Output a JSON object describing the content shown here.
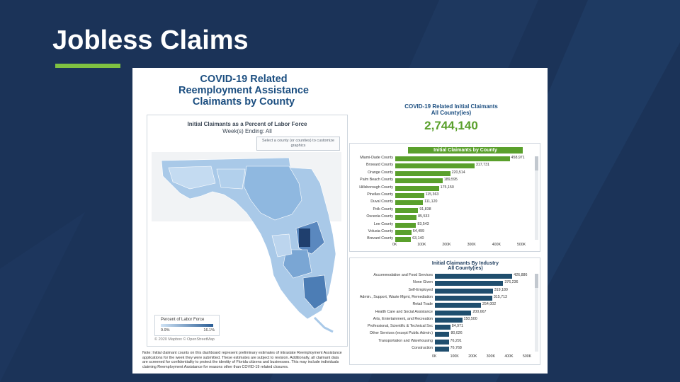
{
  "slide": {
    "title": "Jobless Claims"
  },
  "colors": {
    "background": "#1b3358",
    "accent": "#7fc241",
    "county_bar": "#5aa02c",
    "industry_bar": "#1f4e6e"
  },
  "dashboard": {
    "title_lines": [
      "COVID-19 Related",
      "Reemployment Assistance",
      "Claimants by County"
    ],
    "map": {
      "title": "Initial Claimants as a Percent of Labor Force",
      "subtitle": "Week(s) Ending: All",
      "hint": "Select a county (or counties) to customize graphics",
      "legend_label": "Percent of Labor Force",
      "legend_min": "9.9%",
      "legend_max": "16.1%",
      "credit": "© 2020 Mapbox © OpenStreetMap"
    },
    "total": {
      "label_lines": [
        "COVID-19 Related Initial Claimants",
        "All County(ies)"
      ],
      "value": "2,744,140"
    },
    "note": "Note: Initial claimant counts on this dashboard represent preliminary estimates of intrastate Reemployment Assistance applications for the week they were submitted. These estimates are subject to revision. Additionally, all claimant data are screened for confidentiality to protect the identity of Florida citizens and businesses. This may include individuals claiming Reemployment Assistance for reasons other than COVID-19 related closures."
  },
  "chart_data": [
    {
      "type": "bar",
      "orientation": "horizontal",
      "title": "Initial Claimants by County",
      "categories": [
        "Miami-Dade County",
        "Broward County",
        "Orange County",
        "Palm Beach County",
        "Hillsborough County",
        "Pinellas County",
        "Duval County",
        "Polk County",
        "Osceola County",
        "Lee County",
        "Volusia County",
        "Brevard County"
      ],
      "values": [
        458971,
        317731,
        220514,
        189595,
        175150,
        115363,
        111120,
        91838,
        85533,
        83543,
        64499,
        63140
      ],
      "value_labels": [
        "458,971",
        "317,731",
        "220,514",
        "189,595",
        "175,150",
        "115,363",
        "111,120",
        "91,838",
        "85,533",
        "83,543",
        "64,499",
        "63,140"
      ],
      "xlim": [
        0,
        500000
      ],
      "ticks": [
        "0K",
        "100K",
        "200K",
        "300K",
        "400K",
        "500K"
      ]
    },
    {
      "type": "bar",
      "orientation": "horizontal",
      "title": "Initial Claimants By Industry",
      "subtitle": "All County(ies)",
      "categories": [
        "Accommodation and Food Services",
        "None Given",
        "Self-Employed",
        "Admin., Support, Waste Mgmt, Remediation",
        "Retail Trade",
        "Health Care and Social Assistance",
        "Arts, Entertainment, and Recreation",
        "Professional, Scientific & Technical Svc",
        "Other Services (except Public Admin.)",
        "Transportation and Warehousing",
        "Construction"
      ],
      "values": [
        426886,
        376236,
        319180,
        315713,
        254002,
        200667,
        150500,
        84971,
        80026,
        76291,
        76768
      ],
      "value_labels": [
        "426,886",
        "376,236",
        "319,180",
        "315,713",
        "254,002",
        "200,667",
        "150,500",
        "84,971",
        "80,026",
        "76,291",
        "76,768"
      ],
      "xlim": [
        0,
        500000
      ],
      "ticks": [
        "0K",
        "100K",
        "200K",
        "300K",
        "400K",
        "500K"
      ]
    }
  ]
}
